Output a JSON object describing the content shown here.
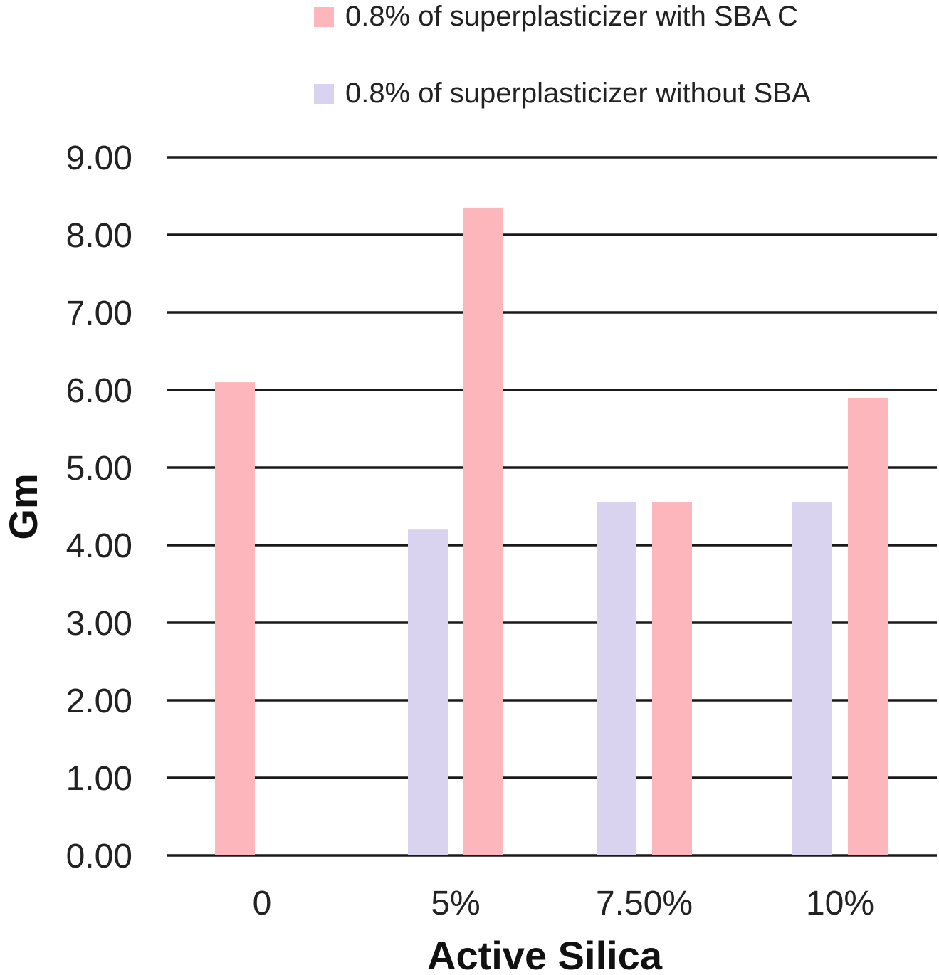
{
  "chart_data": {
    "type": "bar",
    "xlabel": "Active Silica",
    "ylabel": "Gm",
    "ylim": [
      0,
      9
    ],
    "yticks": [
      "0.00",
      "1.00",
      "2.00",
      "3.00",
      "4.00",
      "5.00",
      "6.00",
      "7.00",
      "8.00",
      "9.00"
    ],
    "categories": [
      "0",
      "5%",
      "7.50%",
      "10%"
    ],
    "grid": true,
    "legend_position": "top",
    "series": [
      {
        "name": "0.8% of superplasticizer without SBA",
        "color": "#d9d3ef",
        "values": [
          null,
          4.2,
          4.55,
          4.55
        ]
      },
      {
        "name": "0.8% of superplasticizer with SBA C",
        "color": "#fdb6bb",
        "values": [
          6.1,
          8.35,
          4.55,
          5.9
        ]
      }
    ],
    "legend_order": [
      1,
      0
    ]
  }
}
